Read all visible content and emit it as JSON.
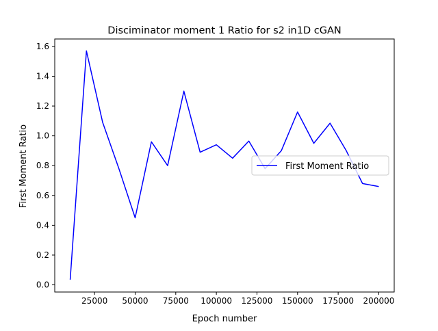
{
  "chart_data": {
    "type": "line",
    "title": "Disciminator moment 1 Ratio for s2 in1D cGAN",
    "xlabel": "Epoch number",
    "ylabel": "First Moment Ratio",
    "xlim": [
      500,
      209500
    ],
    "ylim": [
      -0.048,
      1.65
    ],
    "xticks": [
      25000,
      50000,
      75000,
      100000,
      125000,
      150000,
      175000,
      200000
    ],
    "xtick_labels": [
      "25000",
      "50000",
      "75000",
      "100000",
      "125000",
      "150000",
      "175000",
      "200000"
    ],
    "yticks": [
      0.0,
      0.2,
      0.4,
      0.6,
      0.8,
      1.0,
      1.2,
      1.4,
      1.6
    ],
    "ytick_labels": [
      "0.0",
      "0.2",
      "0.4",
      "0.6",
      "0.8",
      "1.0",
      "1.2",
      "1.4",
      "1.6"
    ],
    "grid": false,
    "legend_position": "center-right",
    "series": [
      {
        "name": "First Moment Ratio",
        "color": "#0000ff",
        "x": [
          10000,
          20000,
          30000,
          40000,
          50000,
          60000,
          70000,
          80000,
          90000,
          100000,
          110000,
          120000,
          130000,
          140000,
          150000,
          160000,
          170000,
          180000,
          190000,
          200000
        ],
        "y": [
          0.035,
          1.57,
          1.09,
          0.78,
          0.45,
          0.96,
          0.8,
          1.3,
          0.89,
          0.94,
          0.85,
          0.965,
          0.78,
          0.9,
          1.16,
          0.95,
          1.085,
          0.9,
          0.68,
          0.66
        ]
      }
    ]
  }
}
